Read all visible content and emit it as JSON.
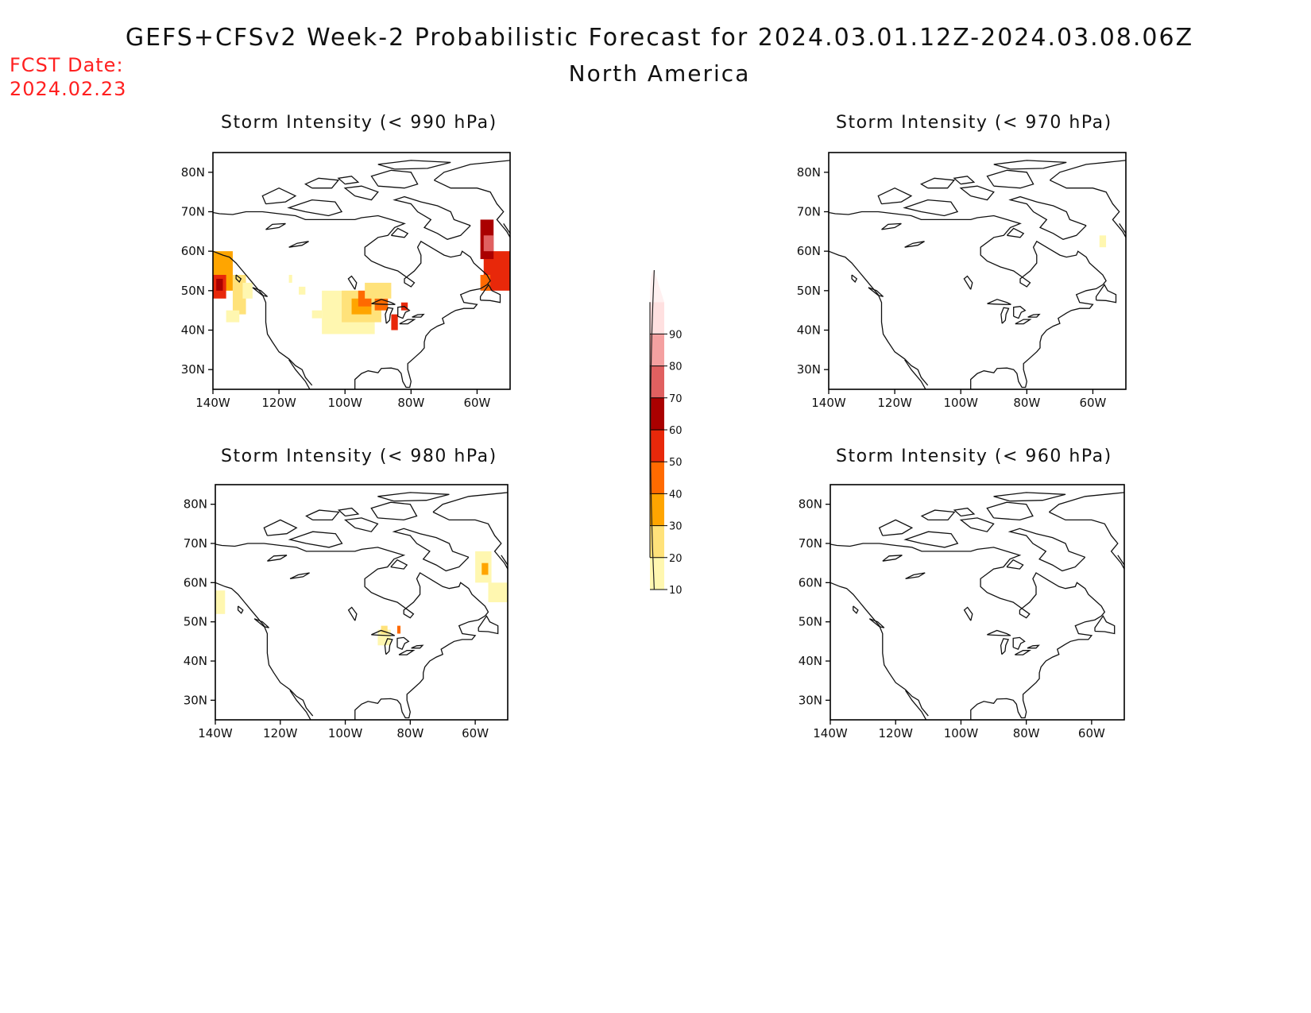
{
  "header": {
    "title": "GEFS+CFSv2 Week-2 Probabilistic Forecast for 2024.03.01.12Z-2024.03.08.06Z",
    "subtitle": "North America"
  },
  "fcst_date": {
    "label": "FCST Date:",
    "value": "2024.02.23"
  },
  "axes": {
    "lat_ticks": [
      "80N",
      "70N",
      "60N",
      "50N",
      "40N",
      "30N"
    ],
    "lon_ticks": [
      "140W",
      "120W",
      "100W",
      "80W",
      "60W"
    ],
    "lat_values": [
      80,
      70,
      60,
      50,
      40,
      30
    ],
    "lon_values": [
      -140,
      -120,
      -100,
      -80,
      -60
    ],
    "lon_range": [
      -140,
      -50
    ],
    "lat_range": [
      25,
      85
    ]
  },
  "colorbar": {
    "levels": [
      "10",
      "20",
      "30",
      "40",
      "50",
      "60",
      "70",
      "80",
      "90"
    ],
    "colors": [
      "#fff7b0",
      "#ffe27a",
      "#ffa500",
      "#ff6a00",
      "#e8280a",
      "#aa0000",
      "#e06060",
      "#f4a0a0",
      "#ffe0e0"
    ]
  },
  "panels": [
    {
      "id": "p990",
      "title": "Storm Intensity (< 990 hPa)",
      "cells": [
        {
          "lon": -140,
          "lat": 50,
          "w": 6,
          "h": 10,
          "level": 2
        },
        {
          "lon": -140,
          "lat": 48,
          "w": 4,
          "h": 6,
          "level": 4
        },
        {
          "lon": -139,
          "lat": 50,
          "w": 2,
          "h": 3,
          "level": 5
        },
        {
          "lon": -134,
          "lat": 44,
          "w": 4,
          "h": 10,
          "level": 1
        },
        {
          "lon": -131,
          "lat": 48,
          "w": 3,
          "h": 4,
          "level": 0
        },
        {
          "lon": -136,
          "lat": 42,
          "w": 4,
          "h": 3,
          "level": 0
        },
        {
          "lon": -107,
          "lat": 39,
          "w": 16,
          "h": 11,
          "level": 0
        },
        {
          "lon": -101,
          "lat": 42,
          "w": 12,
          "h": 8,
          "level": 1
        },
        {
          "lon": -98,
          "lat": 44,
          "w": 6,
          "h": 4,
          "level": 2
        },
        {
          "lon": -96,
          "lat": 46,
          "w": 4,
          "h": 4,
          "level": 3
        },
        {
          "lon": -91,
          "lat": 45,
          "w": 4,
          "h": 3,
          "level": 3
        },
        {
          "lon": -94,
          "lat": 48,
          "w": 8,
          "h": 4,
          "level": 1
        },
        {
          "lon": -86,
          "lat": 40,
          "w": 2,
          "h": 4,
          "level": 4
        },
        {
          "lon": -83,
          "lat": 45,
          "w": 2,
          "h": 2,
          "level": 4
        },
        {
          "lon": -110,
          "lat": 43,
          "w": 3,
          "h": 2,
          "level": 0
        },
        {
          "lon": -58,
          "lat": 50,
          "w": 8,
          "h": 10,
          "level": 4
        },
        {
          "lon": -59,
          "lat": 58,
          "w": 4,
          "h": 10,
          "level": 5
        },
        {
          "lon": -58,
          "lat": 60,
          "w": 3,
          "h": 4,
          "level": 6
        },
        {
          "lon": -59,
          "lat": 50,
          "w": 3,
          "h": 4,
          "level": 3
        },
        {
          "lon": -117,
          "lat": 52,
          "w": 1,
          "h": 2,
          "level": 0
        },
        {
          "lon": -114,
          "lat": 49,
          "w": 2,
          "h": 2,
          "level": 0
        }
      ]
    },
    {
      "id": "p970",
      "title": "Storm Intensity (< 970 hPa)",
      "cells": [
        {
          "lon": -58,
          "lat": 61,
          "w": 2,
          "h": 3,
          "level": 0
        }
      ]
    },
    {
      "id": "p980",
      "title": "Storm Intensity (< 980 hPa)",
      "cells": [
        {
          "lon": -140,
          "lat": 52,
          "w": 3,
          "h": 6,
          "level": 0
        },
        {
          "lon": -60,
          "lat": 60,
          "w": 5,
          "h": 8,
          "level": 0
        },
        {
          "lon": -58,
          "lat": 62,
          "w": 2,
          "h": 3,
          "level": 2
        },
        {
          "lon": -56,
          "lat": 55,
          "w": 6,
          "h": 5,
          "level": 0
        },
        {
          "lon": -90,
          "lat": 44,
          "w": 4,
          "h": 4,
          "level": 0
        },
        {
          "lon": -89,
          "lat": 47,
          "w": 2,
          "h": 2,
          "level": 1
        },
        {
          "lon": -84,
          "lat": 47,
          "w": 1,
          "h": 2,
          "level": 3
        }
      ]
    },
    {
      "id": "p960",
      "title": "Storm Intensity (< 960 hPa)",
      "cells": []
    }
  ]
}
